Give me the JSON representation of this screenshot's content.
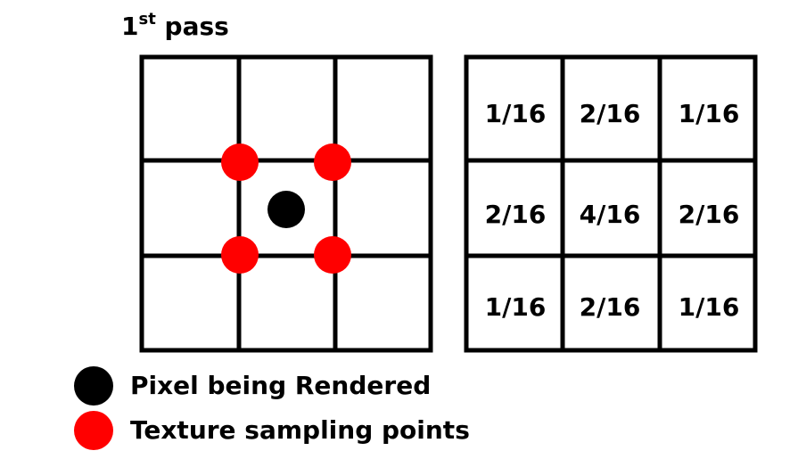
{
  "title": {
    "main": "1",
    "superscript": "st",
    "suffix": " pass"
  },
  "weights_grid": {
    "rows": [
      [
        "1/16",
        "2/16",
        "1/16"
      ],
      [
        "2/16",
        "4/16",
        "2/16"
      ],
      [
        "1/16",
        "2/16",
        "1/16"
      ]
    ]
  },
  "legend": {
    "items": [
      {
        "label": "Pixel being Rendered",
        "color": "#000000"
      },
      {
        "label": "Texture sampling points",
        "color": "#ff0000"
      }
    ]
  },
  "colors": {
    "pixel": "#000000",
    "sample": "#ff0000",
    "grid": "#000000"
  }
}
